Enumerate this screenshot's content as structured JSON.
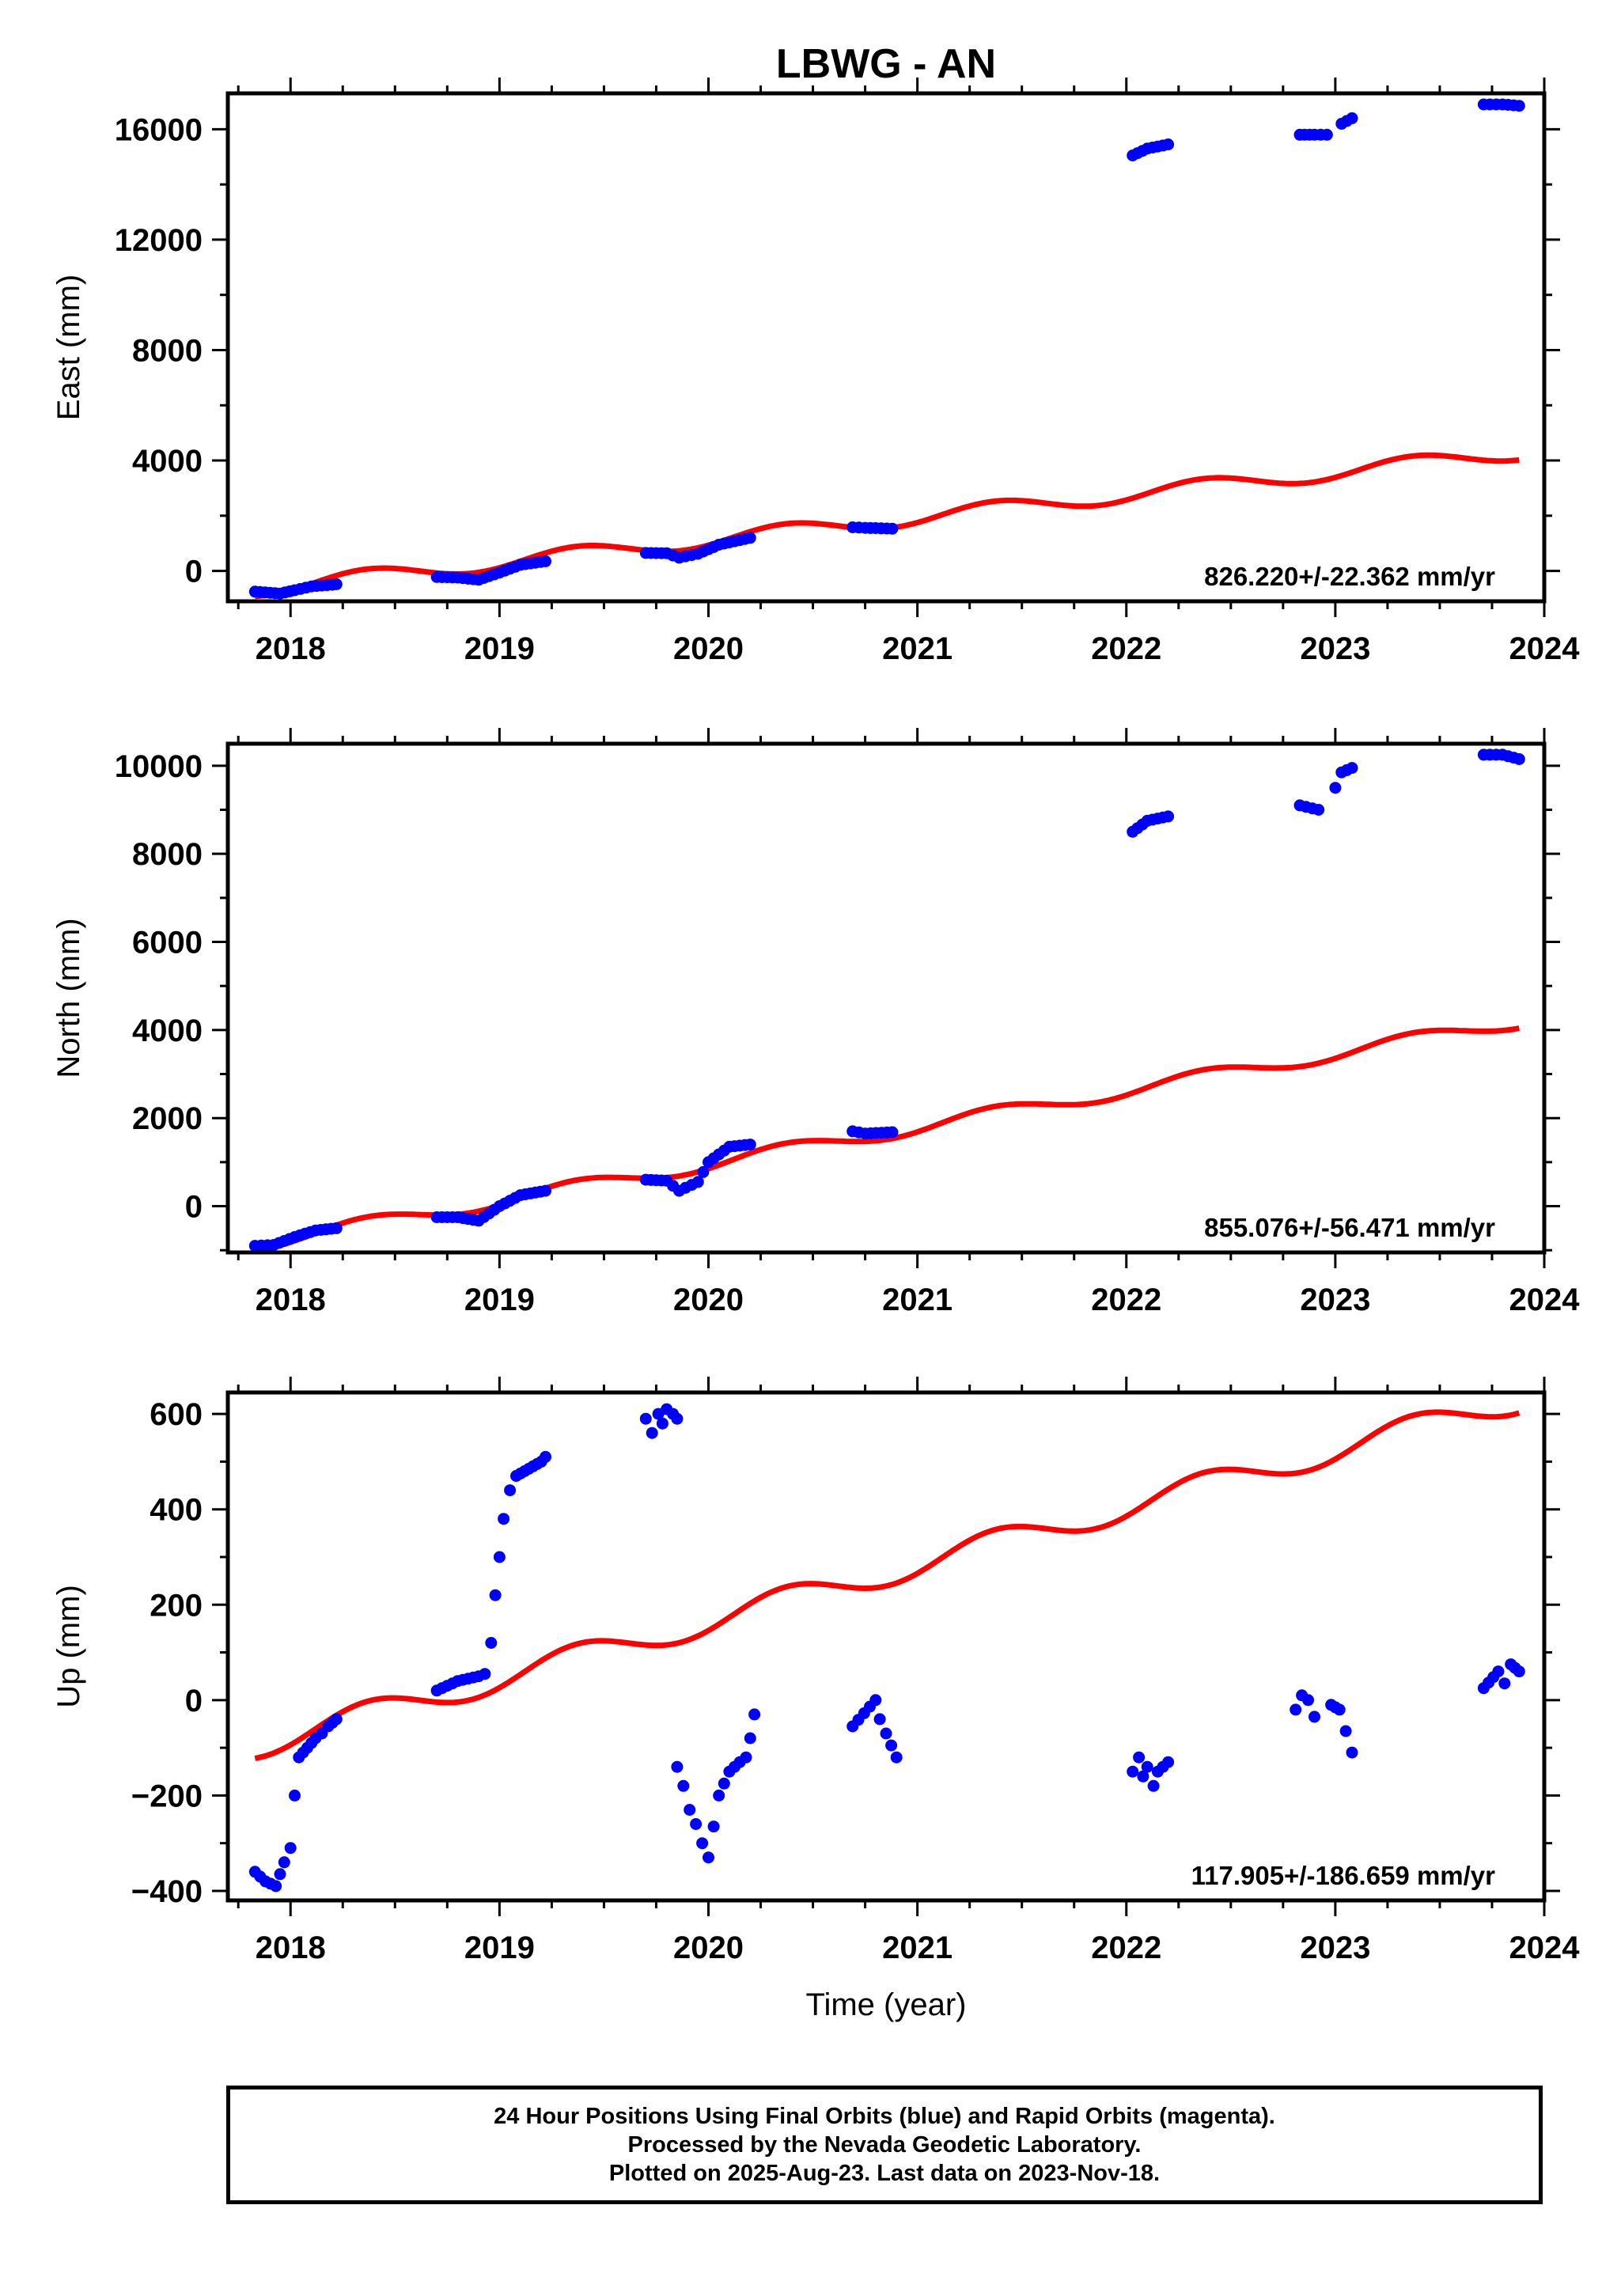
{
  "title": "LBWG - AN",
  "colors": {
    "data": "#0000ff",
    "model": "#ff0000",
    "frame": "#000000"
  },
  "footer": {
    "line1": "24 Hour Positions Using Final Orbits (blue) and Rapid Orbits (magenta).",
    "line2": "Processed by the Nevada Geodetic Laboratory.",
    "line3": "Plotted on 2025-Aug-23. Last data on 2023-Nov-18."
  },
  "chart_data": [
    {
      "type": "scatter",
      "ylabel": "East (mm)",
      "xlabel": "",
      "xlim": [
        2017.7,
        2024
      ],
      "ylim": [
        -1100,
        17300
      ],
      "yticks": [
        0,
        4000,
        8000,
        12000,
        16000
      ],
      "xticks": [
        2018,
        2019,
        2020,
        2021,
        2022,
        2023,
        2024
      ],
      "rate_label": "826.220+/-22.362 mm/yr",
      "model": {
        "name": "model",
        "start": [
          2017.83,
          -650
        ],
        "end": [
          2023.88,
          4300
        ],
        "amplitude": 280,
        "period": 1.0,
        "phase": 0.12
      },
      "segments": [
        {
          "x": [
            2017.83,
            2017.95,
            2018.02,
            2018.1,
            2018.2,
            2018.22
          ],
          "y": [
            -750,
            -820,
            -700,
            -560,
            -500,
            -480
          ]
        },
        {
          "x": [
            2018.7,
            2018.8,
            2018.9,
            2019.0,
            2019.1,
            2019.22
          ],
          "y": [
            -220,
            -240,
            -320,
            -60,
            220,
            350
          ]
        },
        {
          "x": [
            2019.7,
            2019.8,
            2019.86,
            2019.95,
            2020.05,
            2020.2
          ],
          "y": [
            650,
            640,
            480,
            620,
            950,
            1200
          ]
        },
        {
          "x": [
            2020.69,
            2020.75,
            2020.8,
            2020.88
          ],
          "y": [
            1580,
            1560,
            1550,
            1530
          ]
        },
        {
          "x": [
            2022.03,
            2022.1,
            2022.2
          ],
          "y": [
            15050,
            15300,
            15450
          ]
        },
        {
          "x": [
            2022.83,
            2022.9,
            2022.96
          ],
          "y": [
            15800,
            15800,
            15800
          ]
        },
        {
          "x": [
            2023.03,
            2023.08
          ],
          "y": [
            16200,
            16400
          ]
        },
        {
          "x": [
            2023.71,
            2023.8,
            2023.88
          ],
          "y": [
            16900,
            16900,
            16850
          ]
        }
      ]
    },
    {
      "type": "scatter",
      "ylabel": "North (mm)",
      "xlabel": "",
      "xlim": [
        2017.7,
        2024
      ],
      "ylim": [
        -1050,
        10500
      ],
      "yticks": [
        0,
        2000,
        4000,
        6000,
        8000,
        10000
      ],
      "xticks": [
        2018,
        2019,
        2020,
        2021,
        2022,
        2023,
        2024
      ],
      "rate_label": "855.076+/-56.471 mm/yr",
      "model": {
        "name": "model",
        "start": [
          2017.83,
          -850
        ],
        "end": [
          2023.88,
          4200
        ],
        "amplitude": 160,
        "period": 1.0,
        "phase": 0.12
      },
      "segments": [
        {
          "x": [
            2017.83,
            2017.92,
            2018.02,
            2018.12,
            2018.22
          ],
          "y": [
            -900,
            -880,
            -700,
            -550,
            -500
          ]
        },
        {
          "x": [
            2018.7,
            2018.8,
            2018.9,
            2019.0,
            2019.1,
            2019.22
          ],
          "y": [
            -250,
            -250,
            -330,
            0,
            250,
            350
          ]
        },
        {
          "x": [
            2019.7,
            2019.8,
            2019.86,
            2019.95,
            2020.0,
            2020.1,
            2020.2
          ],
          "y": [
            600,
            580,
            350,
            550,
            1000,
            1350,
            1400
          ]
        },
        {
          "x": [
            2020.69,
            2020.75,
            2020.88
          ],
          "y": [
            1700,
            1650,
            1680
          ]
        },
        {
          "x": [
            2022.03,
            2022.1,
            2022.2
          ],
          "y": [
            8500,
            8750,
            8850
          ]
        },
        {
          "x": [
            2022.83,
            2022.92
          ],
          "y": [
            9100,
            9000
          ]
        },
        {
          "x": [
            2023.0,
            2023.03,
            2023.08
          ],
          "y": [
            9500,
            9850,
            9950
          ]
        },
        {
          "x": [
            2023.71,
            2023.8,
            2023.88
          ],
          "y": [
            10250,
            10250,
            10150
          ]
        }
      ]
    },
    {
      "type": "scatter",
      "ylabel": "Up (mm)",
      "xlabel": "Time (year)",
      "xlim": [
        2017.7,
        2024
      ],
      "ylim": [
        -420,
        645
      ],
      "yticks": [
        -400,
        -200,
        0,
        200,
        400,
        600
      ],
      "xticks": [
        2018,
        2019,
        2020,
        2021,
        2022,
        2023,
        2024
      ],
      "rate_label": "117.905+/-186.659 mm/yr",
      "model": {
        "name": "model",
        "start": [
          2017.83,
          -95
        ],
        "end": [
          2023.88,
          630
        ],
        "amplitude": 28,
        "period": 1.0,
        "phase": 0.12
      },
      "segments": [
        {
          "x": [
            2017.83,
            2017.88,
            2017.93,
            2017.97,
            2018.0,
            2018.02,
            2018.04,
            2018.08,
            2018.12,
            2018.15,
            2018.18,
            2018.22
          ],
          "y": [
            -360,
            -380,
            -390,
            -340,
            -310,
            -200,
            -120,
            -100,
            -80,
            -70,
            -55,
            -40
          ]
        },
        {
          "x": [
            2018.7,
            2018.75,
            2018.8,
            2018.85,
            2018.9,
            2018.93,
            2018.96,
            2018.98,
            2019.0,
            2019.02,
            2019.05,
            2019.08,
            2019.12,
            2019.16,
            2019.2,
            2019.22
          ],
          "y": [
            20,
            30,
            40,
            45,
            50,
            55,
            120,
            220,
            300,
            380,
            440,
            470,
            480,
            490,
            500,
            510
          ]
        },
        {
          "x": [
            2019.7,
            2019.73,
            2019.76,
            2019.78,
            2019.8,
            2019.83,
            2019.85
          ],
          "y": [
            590,
            560,
            600,
            580,
            610,
            600,
            590
          ]
        },
        {
          "x": [
            2019.85,
            2019.88,
            2019.91,
            2019.94,
            2019.97,
            2020.0,
            2020.05,
            2020.1,
            2020.15,
            2020.18,
            2020.2,
            2020.22
          ],
          "y": [
            -140,
            -180,
            -230,
            -260,
            -300,
            -330,
            -200,
            -150,
            -130,
            -120,
            -80,
            -30
          ]
        },
        {
          "x": [
            2020.69,
            2020.8,
            2020.82,
            2020.85,
            2020.9
          ],
          "y": [
            -55,
            0,
            -40,
            -70,
            -120
          ]
        },
        {
          "x": [
            2022.03,
            2022.06,
            2022.08,
            2022.1,
            2022.13,
            2022.15,
            2022.2
          ],
          "y": [
            -150,
            -120,
            -160,
            -140,
            -180,
            -150,
            -130
          ]
        },
        {
          "x": [
            2022.81,
            2022.84,
            2022.87,
            2022.9
          ],
          "y": [
            -20,
            10,
            0,
            -35
          ]
        },
        {
          "x": [
            2022.98,
            2023.02,
            2023.08
          ],
          "y": [
            -10,
            -20,
            -110
          ]
        },
        {
          "x": [
            2023.71,
            2023.78,
            2023.81,
            2023.84,
            2023.88
          ],
          "y": [
            25,
            60,
            35,
            75,
            60
          ]
        }
      ]
    }
  ]
}
